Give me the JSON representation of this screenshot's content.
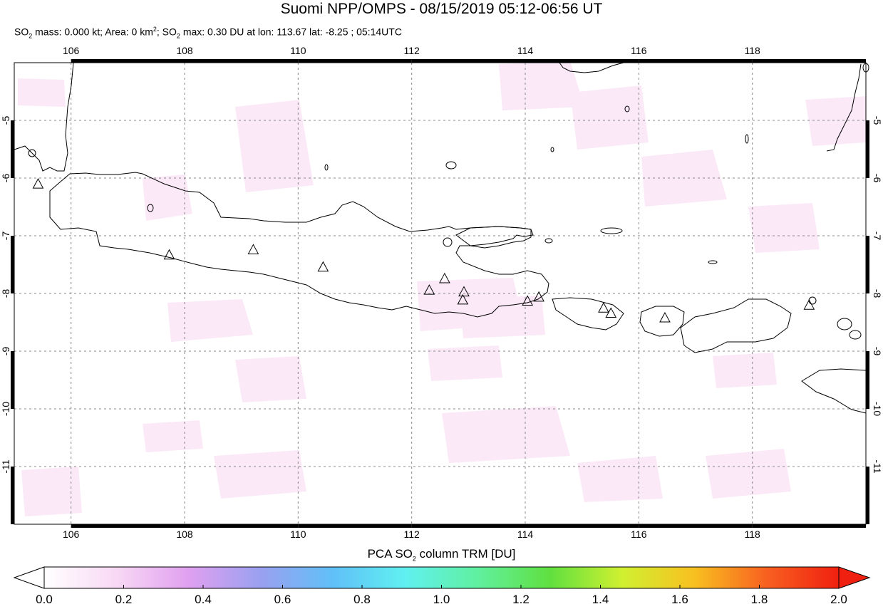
{
  "title": "Suomi NPP/OMPS - 08/15/2019 05:12-06:56 UT",
  "subtitle": {
    "so2_mass_label": "SO",
    "so2_mass_text": " mass: 0.000 kt; Area: 0 km",
    "area_sup": "2",
    "so2_max_label": "; SO",
    "so2_max_text": " max: 0.30 DU at lon: 113.67 lat: -8.25 ; 05:14UTC",
    "sub2": "2"
  },
  "map": {
    "lon_range": [
      105.0,
      120.0
    ],
    "lat_range": [
      -12.0,
      -4.0
    ],
    "lon_ticks": [
      "106",
      "108",
      "110",
      "112",
      "114",
      "116",
      "118"
    ],
    "lat_ticks": [
      "-5",
      "-6",
      "-7",
      "-8",
      "-9",
      "-10",
      "-11"
    ],
    "volcanoes": [
      [
        105.42,
        -6.1
      ],
      [
        107.73,
        -7.33
      ],
      [
        109.21,
        -7.24
      ],
      [
        110.44,
        -7.54
      ],
      [
        112.31,
        -7.94
      ],
      [
        112.58,
        -7.74
      ],
      [
        112.92,
        -7.97
      ],
      [
        112.9,
        -8.11
      ],
      [
        114.04,
        -8.13
      ],
      [
        114.24,
        -8.06
      ],
      [
        115.38,
        -8.25
      ],
      [
        115.51,
        -8.34
      ],
      [
        116.46,
        -8.42
      ],
      [
        119.0,
        -8.2
      ]
    ]
  },
  "colorbar": {
    "label_prefix": "PCA SO",
    "label_sub": "2",
    "label_suffix": " column TRM [DU]",
    "ticks": [
      "0.0",
      "0.2",
      "0.4",
      "0.6",
      "0.8",
      "1.0",
      "1.2",
      "1.4",
      "1.6",
      "1.8",
      "2.0"
    ],
    "range": [
      0.0,
      2.0
    ],
    "colors": [
      "#ffffff",
      "#f8d8f4",
      "#e0a0f0",
      "#9aa0f0",
      "#60c0f8",
      "#60f0f0",
      "#60f0a0",
      "#60e040",
      "#d0f030",
      "#f8c020",
      "#f86020",
      "#f02010"
    ]
  }
}
